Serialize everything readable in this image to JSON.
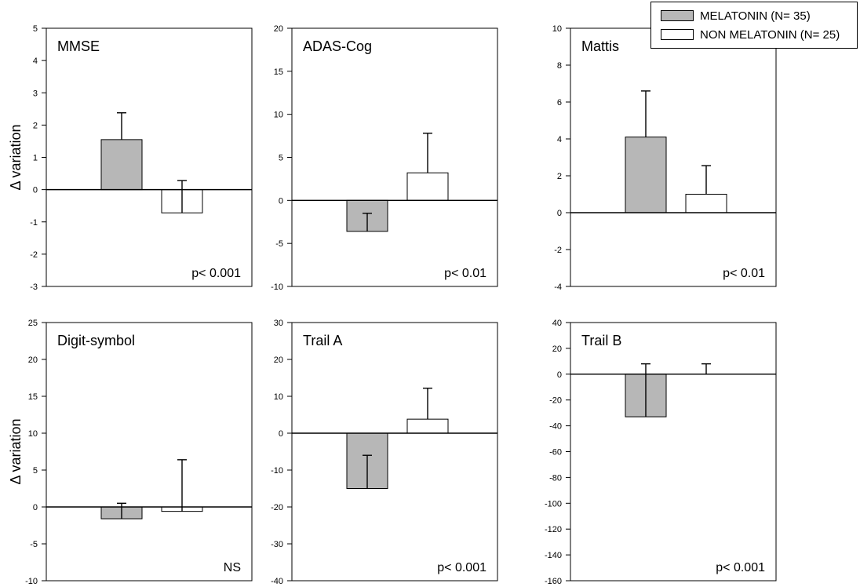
{
  "chart_data": {
    "type": "bar",
    "y_axis_label": "Δ variation",
    "series_colors": [
      "#b7b7b7",
      "#ffffff"
    ],
    "legend": {
      "entries": [
        "MELATONIN (N= 35)",
        "NON MELATONIN (N= 25)"
      ],
      "placement": "top-right"
    },
    "panels": [
      {
        "title": "MMSE",
        "ylim": [
          -3,
          5
        ],
        "yticks": [
          -3,
          -2,
          -1,
          0,
          1,
          2,
          3,
          4,
          5
        ],
        "values": [
          1.55,
          -0.72
        ],
        "error_upper": [
          2.38,
          0.28
        ],
        "annotation": "p< 0.001"
      },
      {
        "title": "ADAS-Cog",
        "ylim": [
          -10,
          20
        ],
        "yticks": [
          -10,
          -5,
          0,
          5,
          10,
          15,
          20
        ],
        "values": [
          -3.6,
          3.2
        ],
        "error_upper": [
          -1.5,
          7.8
        ],
        "annotation": "p< 0.01"
      },
      {
        "title": "Mattis",
        "ylim": [
          -4,
          10
        ],
        "yticks": [
          -4,
          -2,
          0,
          2,
          4,
          6,
          8,
          10
        ],
        "values": [
          4.1,
          1.0
        ],
        "error_upper": [
          6.6,
          2.55
        ],
        "annotation": "p< 0.01"
      },
      {
        "title": "Digit-symbol",
        "ylim": [
          -10,
          25
        ],
        "yticks": [
          -10,
          -5,
          0,
          5,
          10,
          15,
          20,
          25
        ],
        "values": [
          -1.6,
          -0.6
        ],
        "error_upper": [
          0.5,
          6.4
        ],
        "annotation": "NS"
      },
      {
        "title": "Trail A",
        "ylim": [
          -40,
          30
        ],
        "yticks": [
          -40,
          -30,
          -20,
          -10,
          0,
          10,
          20,
          30
        ],
        "values": [
          -15,
          3.8
        ],
        "error_upper": [
          -6,
          12.2
        ],
        "annotation": "p< 0.001"
      },
      {
        "title": "Trail B",
        "ylim": [
          -160,
          40
        ],
        "yticks": [
          -160,
          -140,
          -120,
          -100,
          -80,
          -60,
          -40,
          -20,
          0,
          20,
          40
        ],
        "values": [
          -33,
          0
        ],
        "error_upper": [
          8,
          8
        ],
        "annotation": "p< 0.001"
      }
    ]
  }
}
